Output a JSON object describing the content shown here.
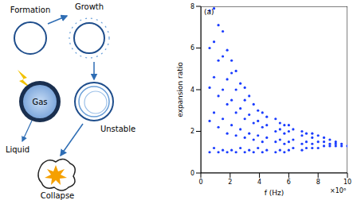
{
  "diagram": {
    "nodes": [
      {
        "label": "Formation"
      },
      {
        "label": "Growth"
      },
      {
        "label": "Gas"
      },
      {
        "label": "Liquid"
      },
      {
        "label": "Unstable"
      },
      {
        "label": "Collapse"
      }
    ]
  },
  "chart_data": {
    "type": "scatter",
    "x_label": "f (Hz)",
    "y_label": "expansion ratio",
    "annotations": [
      "(a)",
      "×10⁶"
    ],
    "color": "#1a3cff",
    "marker": "dot",
    "xlim": [
      0,
      10
    ],
    "xticks": [
      0,
      2,
      4,
      6,
      8,
      10
    ],
    "ylim": [
      0,
      8
    ],
    "yticks": [
      0,
      2,
      4,
      6,
      8
    ],
    "x": [
      0.6,
      0.6,
      0.6,
      0.6,
      0.6,
      0.9,
      0.9,
      0.9,
      0.9,
      0.9,
      1.2,
      1.2,
      1.2,
      1.2,
      1.2,
      1.5,
      1.5,
      1.5,
      1.5,
      1.5,
      1.8,
      1.8,
      1.8,
      1.8,
      1.8,
      2.1,
      2.1,
      2.1,
      2.1,
      2.1,
      2.4,
      2.4,
      2.4,
      2.4,
      2.4,
      2.7,
      2.7,
      2.7,
      2.7,
      3.0,
      3.0,
      3.0,
      3.0,
      3.0,
      3.3,
      3.3,
      3.3,
      3.3,
      3.6,
      3.6,
      3.6,
      3.6,
      3.9,
      3.9,
      3.9,
      3.9,
      4.2,
      4.2,
      4.2,
      4.2,
      4.5,
      4.5,
      4.5,
      4.5,
      5.1,
      5.1,
      5.1,
      5.1,
      5.4,
      5.4,
      5.4,
      5.4,
      5.7,
      5.7,
      5.7,
      5.7,
      6.0,
      6.0,
      6.0,
      6.0,
      6.3,
      6.3,
      6.3,
      6.9,
      6.9,
      6.9,
      6.9,
      7.2,
      7.2,
      7.2,
      7.6,
      7.6,
      7.6,
      7.6,
      8.0,
      8.0,
      8.0,
      8.4,
      8.4,
      8.4,
      8.8,
      8.8,
      8.8,
      9.2,
      9.2,
      9.2,
      9.6,
      9.6,
      10.0
    ],
    "values": [
      1.0,
      2.5,
      4.1,
      6.0,
      7.8,
      1.2,
      2.9,
      4.6,
      6.3,
      7.9,
      1.0,
      2.2,
      3.7,
      5.4,
      7.1,
      1.1,
      2.6,
      4.0,
      5.6,
      6.8,
      1.0,
      1.9,
      3.3,
      4.5,
      5.9,
      1.1,
      2.3,
      3.5,
      4.8,
      5.4,
      1.0,
      1.8,
      2.9,
      4.0,
      4.9,
      1.2,
      2.1,
      3.1,
      4.3,
      1.0,
      1.7,
      2.6,
      3.5,
      4.1,
      1.1,
      1.9,
      2.8,
      3.7,
      1.0,
      1.6,
      2.4,
      3.3,
      1.2,
      1.8,
      2.5,
      3.0,
      1.0,
      1.5,
      2.2,
      2.9,
      1.1,
      1.7,
      2.3,
      2.7,
      1.0,
      1.5,
      2.0,
      2.6,
      1.1,
      1.6,
      2.1,
      2.4,
      1.0,
      1.4,
      1.9,
      2.3,
      1.1,
      1.5,
      2.0,
      2.3,
      1.2,
      1.6,
      2.1,
      1.1,
      1.4,
      1.8,
      2.0,
      1.2,
      1.5,
      1.9,
      1.2,
      1.4,
      1.7,
      1.9,
      1.2,
      1.5,
      1.8,
      1.3,
      1.5,
      1.7,
      1.3,
      1.4,
      1.6,
      1.3,
      1.4,
      1.5,
      1.3,
      1.4,
      1.3
    ]
  }
}
